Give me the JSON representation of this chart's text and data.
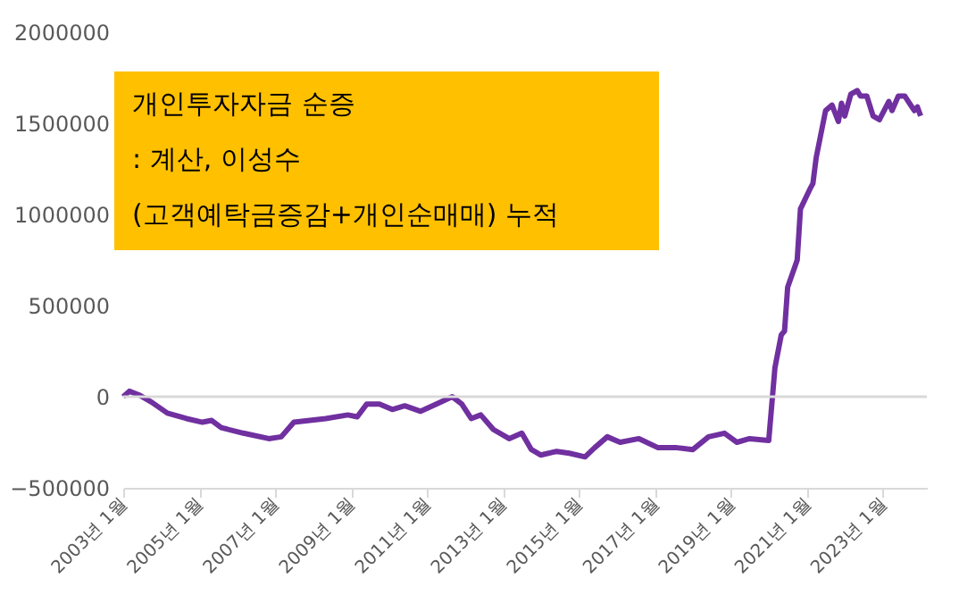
{
  "chart_data": {
    "type": "line",
    "title": "개인투자자금 순증",
    "subtitle": ": 계산, 이성수\n(고객예탁금증감+개인순매매) 누적",
    "x": [
      "2003-01",
      "2003-03",
      "2003-06",
      "2003-10",
      "2004-03",
      "2004-09",
      "2005-02",
      "2005-05",
      "2005-08",
      "2006-03",
      "2006-11",
      "2007-03",
      "2007-07",
      "2007-12",
      "2008-05",
      "2008-12",
      "2009-03",
      "2009-06",
      "2009-10",
      "2010-02",
      "2010-06",
      "2010-11",
      "2011-04",
      "2011-09",
      "2011-12",
      "2012-03",
      "2012-06",
      "2012-10",
      "2013-03",
      "2013-07",
      "2013-10",
      "2014-01",
      "2014-06",
      "2014-10",
      "2015-03",
      "2015-06",
      "2015-10",
      "2016-02",
      "2016-08",
      "2017-02",
      "2017-08",
      "2018-01",
      "2018-06",
      "2018-11",
      "2019-03",
      "2019-07",
      "2020-01",
      "2020-03",
      "2020-05",
      "2020-06",
      "2020-07",
      "2020-10",
      "2020-11",
      "2021-02",
      "2021-03",
      "2021-04",
      "2021-07",
      "2021-09",
      "2021-11",
      "2021-12",
      "2022-01",
      "2022-03",
      "2022-05",
      "2022-06",
      "2022-08",
      "2022-10",
      "2022-12",
      "2023-03",
      "2023-04",
      "2023-06",
      "2023-08",
      "2023-11",
      "2023-12",
      "2024-01"
    ],
    "series": [
      {
        "color": "#7030a0",
        "values": [
          0,
          30000,
          10000,
          -30000,
          -90000,
          -120000,
          -140000,
          -130000,
          -170000,
          -200000,
          -230000,
          -220000,
          -140000,
          -130000,
          -120000,
          -100000,
          -110000,
          -40000,
          -40000,
          -70000,
          -50000,
          -80000,
          -40000,
          0,
          -40000,
          -120000,
          -100000,
          -180000,
          -230000,
          -200000,
          -290000,
          -320000,
          -300000,
          -310000,
          -330000,
          -280000,
          -220000,
          -250000,
          -230000,
          -280000,
          -280000,
          -290000,
          -220000,
          -200000,
          -250000,
          -230000,
          -240000,
          160000,
          340000,
          360000,
          600000,
          750000,
          1030000,
          1140000,
          1170000,
          1310000,
          1570000,
          1600000,
          1510000,
          1610000,
          1540000,
          1660000,
          1680000,
          1650000,
          1650000,
          1540000,
          1520000,
          1620000,
          1570000,
          1650000,
          1650000,
          1570000,
          1590000,
          1540000
        ]
      }
    ],
    "ylim": [
      -500000,
      2000000
    ],
    "yticks": [
      -500000,
      0,
      500000,
      1000000,
      1500000,
      2000000
    ],
    "xlim": [
      "2003-01",
      "2024-03"
    ],
    "xticks": [
      {
        "value": "2003-01",
        "label": "2003년 1월"
      },
      {
        "value": "2005-01",
        "label": "2005년 1월"
      },
      {
        "value": "2007-01",
        "label": "2007년 1월"
      },
      {
        "value": "2009-01",
        "label": "2009년 1월"
      },
      {
        "value": "2011-01",
        "label": "2011년 1월"
      },
      {
        "value": "2013-01",
        "label": "2013년 1월"
      },
      {
        "value": "2015-01",
        "label": "2015년 1월"
      },
      {
        "value": "2017-01",
        "label": "2017년 1월"
      },
      {
        "value": "2019-01",
        "label": "2019년 1월"
      },
      {
        "value": "2021-01",
        "label": "2021년 1월"
      },
      {
        "value": "2023-01",
        "label": "2023년 1월"
      }
    ],
    "ref_lines": [
      {
        "axis": "y",
        "value": 0,
        "color": "#d9d9d9"
      }
    ],
    "grid": false,
    "marker": "none",
    "line_style": "solid"
  }
}
